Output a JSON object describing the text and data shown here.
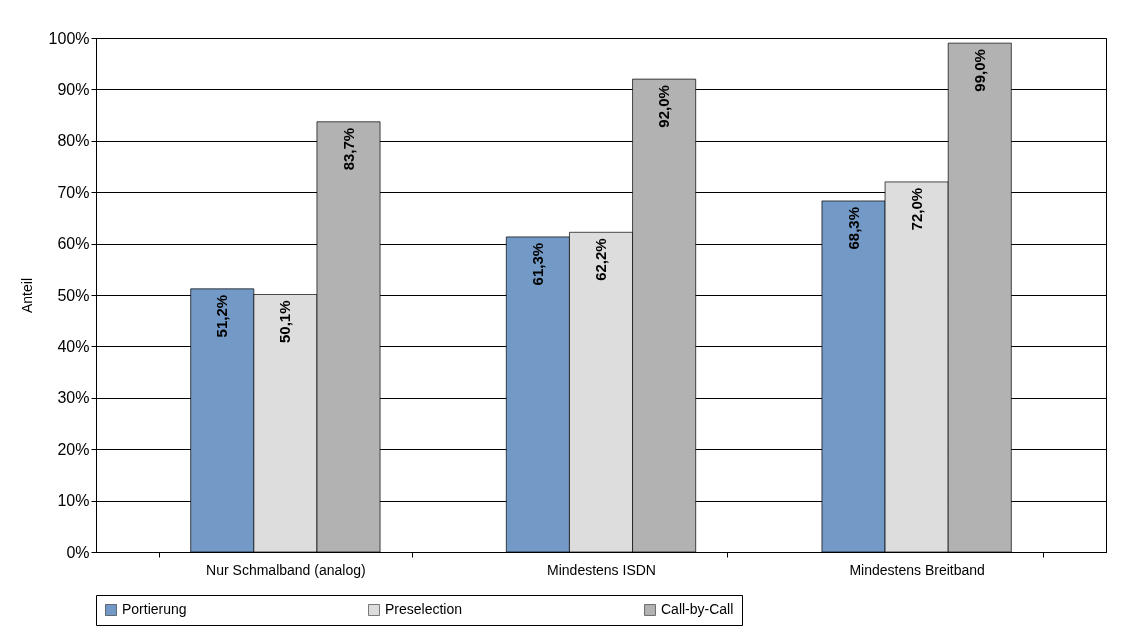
{
  "chart_data": {
    "type": "bar",
    "ylabel": "Anteil",
    "categories": [
      "Nur Schmalband (analog)",
      "Mindestens ISDN",
      "Mindestens Breitband"
    ],
    "series": [
      {
        "name": "Portierung",
        "color": "#7399c6",
        "values": [
          51.2,
          61.3,
          68.3
        ],
        "value_labels": [
          "51,2%",
          "61,3%",
          "68,3%"
        ]
      },
      {
        "name": "Preselection",
        "color": "#dddddd",
        "values": [
          50.1,
          62.2,
          72.0
        ],
        "value_labels": [
          "50,1%",
          "62,2%",
          "72,0%"
        ]
      },
      {
        "name": "Call-by-Call",
        "color": "#b2b2b2",
        "values": [
          83.7,
          92.0,
          99.0
        ],
        "value_labels": [
          "83,7%",
          "92,0%",
          "99,0%"
        ]
      }
    ],
    "ylim": [
      0,
      100
    ],
    "yticks": [
      {
        "value": 0,
        "label": "0%"
      },
      {
        "value": 10,
        "label": "10%"
      },
      {
        "value": 20,
        "label": "20%"
      },
      {
        "value": 30,
        "label": "30%"
      },
      {
        "value": 40,
        "label": "40%"
      },
      {
        "value": 50,
        "label": "50%"
      },
      {
        "value": 60,
        "label": "60%"
      },
      {
        "value": 70,
        "label": "70%"
      },
      {
        "value": 80,
        "label": "80%"
      },
      {
        "value": 90,
        "label": "90%"
      },
      {
        "value": 100,
        "label": "100%"
      }
    ],
    "grid": "y",
    "legend": "bottom"
  }
}
